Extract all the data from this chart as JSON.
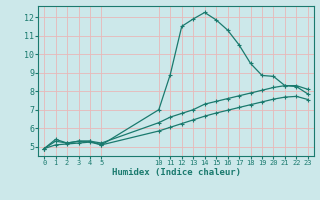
{
  "xlabel": "Humidex (Indice chaleur)",
  "background_color": "#cce8ea",
  "grid_color_h": "#e8b8b8",
  "grid_color_v": "#e8b8b8",
  "line_color": "#1a7a6e",
  "x_ticks": [
    0,
    1,
    2,
    3,
    4,
    5,
    10,
    11,
    12,
    13,
    14,
    15,
    16,
    17,
    18,
    19,
    20,
    21,
    22,
    23
  ],
  "ylim": [
    4.5,
    12.6
  ],
  "xlim": [
    -0.5,
    23.5
  ],
  "curve1_x": [
    0,
    1,
    2,
    3,
    4,
    5,
    10,
    11,
    12,
    13,
    14,
    15,
    16,
    17,
    18,
    19,
    20,
    21,
    22,
    23
  ],
  "curve1_y": [
    4.9,
    5.4,
    5.2,
    5.3,
    5.3,
    5.1,
    7.0,
    8.9,
    11.5,
    11.9,
    12.25,
    11.85,
    11.3,
    10.5,
    9.5,
    8.85,
    8.8,
    8.3,
    8.25,
    7.85
  ],
  "curve2_x": [
    0,
    1,
    2,
    3,
    4,
    5,
    10,
    11,
    12,
    13,
    14,
    15,
    16,
    17,
    18,
    19,
    20,
    21,
    22,
    23
  ],
  "curve2_y": [
    4.9,
    5.3,
    5.2,
    5.3,
    5.3,
    5.2,
    6.3,
    6.6,
    6.8,
    7.0,
    7.3,
    7.45,
    7.6,
    7.75,
    7.9,
    8.05,
    8.2,
    8.3,
    8.3,
    8.1
  ],
  "curve3_x": [
    0,
    1,
    2,
    3,
    4,
    5,
    10,
    11,
    12,
    13,
    14,
    15,
    16,
    17,
    18,
    19,
    20,
    21,
    22,
    23
  ],
  "curve3_y": [
    4.9,
    5.1,
    5.15,
    5.2,
    5.25,
    5.1,
    5.85,
    6.05,
    6.25,
    6.45,
    6.65,
    6.82,
    6.97,
    7.12,
    7.27,
    7.42,
    7.57,
    7.68,
    7.72,
    7.55
  ],
  "yticks": [
    5,
    6,
    7,
    8,
    9,
    10,
    11,
    12
  ],
  "marker_size": 3.0,
  "line_width": 0.9
}
